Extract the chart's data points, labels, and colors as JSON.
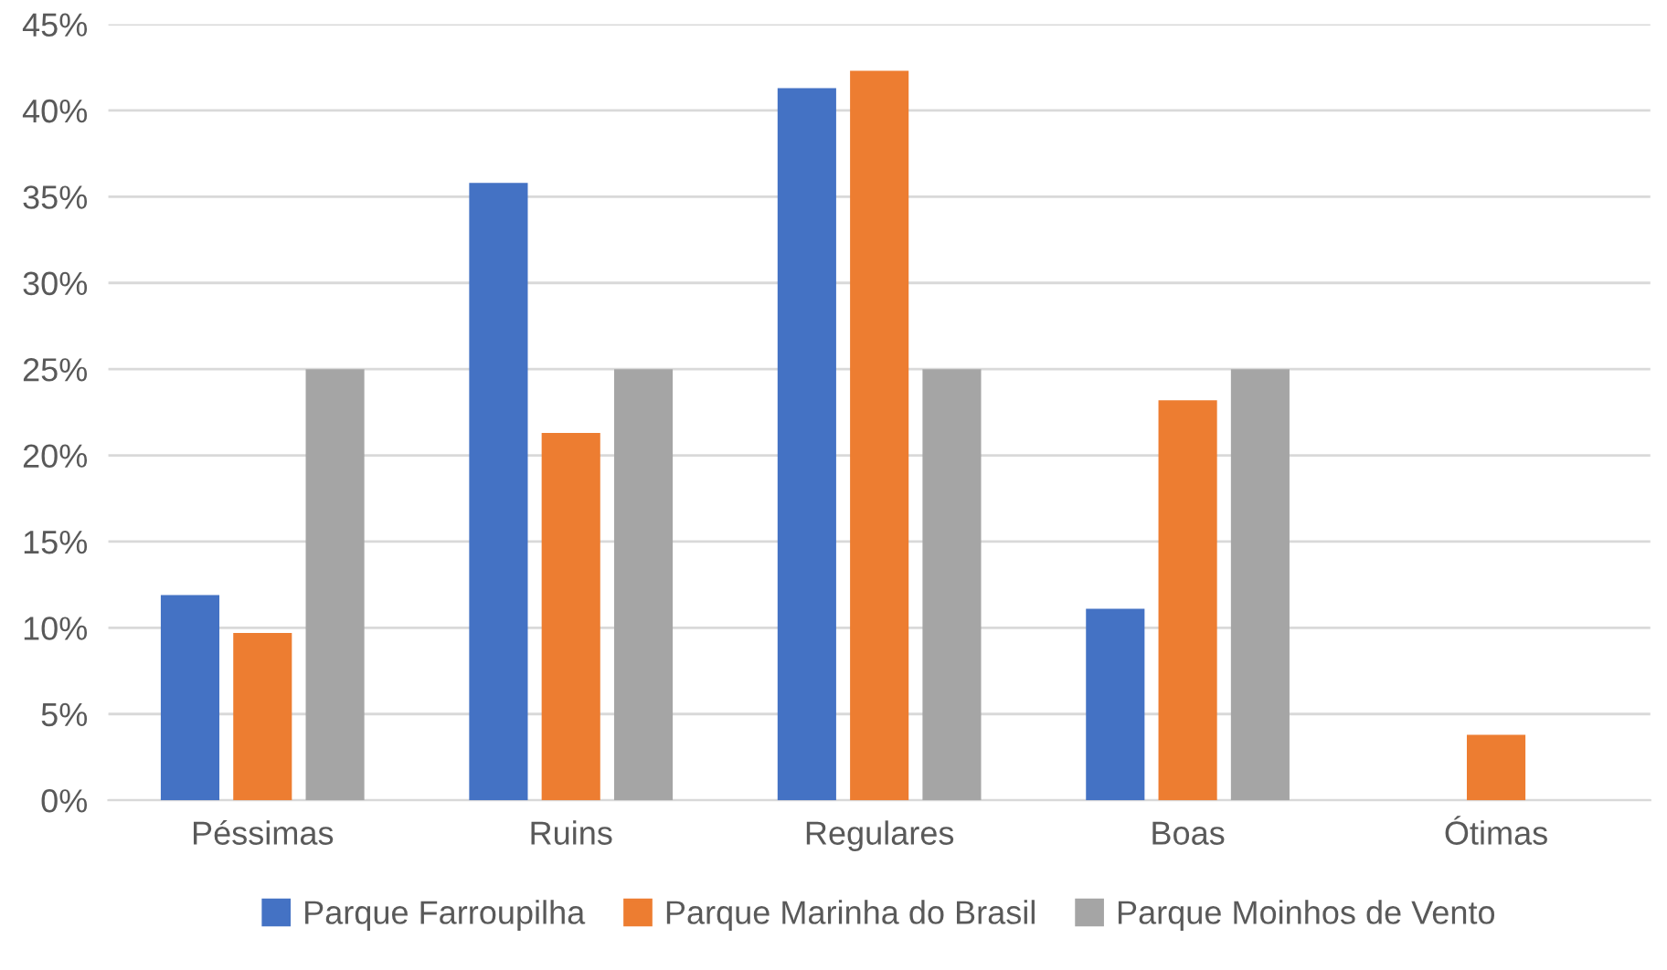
{
  "chart_data": {
    "type": "bar",
    "categories": [
      "Péssimas",
      "Ruins",
      "Regulares",
      "Boas",
      "Ótimas"
    ],
    "series": [
      {
        "name": "Parque Farroupilha",
        "color": "#4472c4",
        "values": [
          11.9,
          35.8,
          41.3,
          11.1,
          null
        ]
      },
      {
        "name": "Parque Marinha do Brasil",
        "color": "#ed7d31",
        "values": [
          9.7,
          21.3,
          42.3,
          23.2,
          3.8
        ]
      },
      {
        "name": "Parque Moinhos de Vento",
        "color": "#a5a5a5",
        "values": [
          25,
          25,
          25,
          25,
          null
        ]
      }
    ],
    "ylim": [
      0,
      45
    ],
    "yticks": [
      {
        "value": 0,
        "label": "0%"
      },
      {
        "value": 5,
        "label": "5%"
      },
      {
        "value": 10,
        "label": "10%"
      },
      {
        "value": 15,
        "label": "15%"
      },
      {
        "value": 20,
        "label": "20%"
      },
      {
        "value": 25,
        "label": "25%"
      },
      {
        "value": 30,
        "label": "30%"
      },
      {
        "value": 35,
        "label": "35%"
      },
      {
        "value": 40,
        "label": "40%"
      },
      {
        "value": 45,
        "label": "45%"
      }
    ],
    "grid": "y",
    "legend": "bottom"
  }
}
